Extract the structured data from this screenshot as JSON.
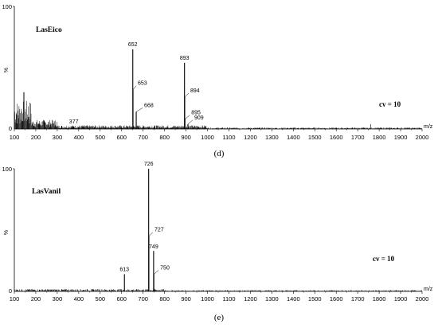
{
  "chart_data": [
    {
      "type": "line",
      "panel_label": "(d)",
      "title": "LasEico",
      "annotation": "cv = 10",
      "ylabel": "%",
      "xlabel": "m/z",
      "xlim": [
        100,
        2000
      ],
      "ylim": [
        0,
        100
      ],
      "yticks": [
        "0",
        "100"
      ],
      "xticks": [
        "100",
        "200",
        "300",
        "400",
        "500",
        "600",
        "700",
        "800",
        "900",
        "1000",
        "1100",
        "1200",
        "1300",
        "1400",
        "1500",
        "1600",
        "1700",
        "1800",
        "1900",
        "2000"
      ],
      "peaks": [
        {
          "x": 652,
          "y": 65,
          "label": "652"
        },
        {
          "x": 653,
          "y": 32,
          "label": "653"
        },
        {
          "x": 668,
          "y": 14,
          "label": "668"
        },
        {
          "x": 893,
          "y": 54,
          "label": "893"
        },
        {
          "x": 894,
          "y": 26,
          "label": "894"
        },
        {
          "x": 895,
          "y": 8,
          "label": "895"
        },
        {
          "x": 909,
          "y": 4,
          "label": "909"
        },
        {
          "x": 377,
          "y": 2,
          "label": "377"
        }
      ]
    },
    {
      "type": "line",
      "panel_label": "(e)",
      "title": "LasVanil",
      "annotation": "cv = 10",
      "ylabel": "%",
      "xlabel": "m/z",
      "xlim": [
        100,
        2000
      ],
      "ylim": [
        0,
        100
      ],
      "yticks": [
        "0",
        "100"
      ],
      "xticks": [
        "100",
        "200",
        "300",
        "400",
        "500",
        "600",
        "700",
        "800",
        "900",
        "1000",
        "1100",
        "1200",
        "1300",
        "1400",
        "1500",
        "1600",
        "1700",
        "1800",
        "1900",
        "2000"
      ],
      "peaks": [
        {
          "x": 726,
          "y": 100,
          "label": "726"
        },
        {
          "x": 727,
          "y": 45,
          "label": "727"
        },
        {
          "x": 749,
          "y": 33,
          "label": "749"
        },
        {
          "x": 750,
          "y": 14,
          "label": "750"
        },
        {
          "x": 613,
          "y": 14,
          "label": "613"
        }
      ]
    }
  ]
}
